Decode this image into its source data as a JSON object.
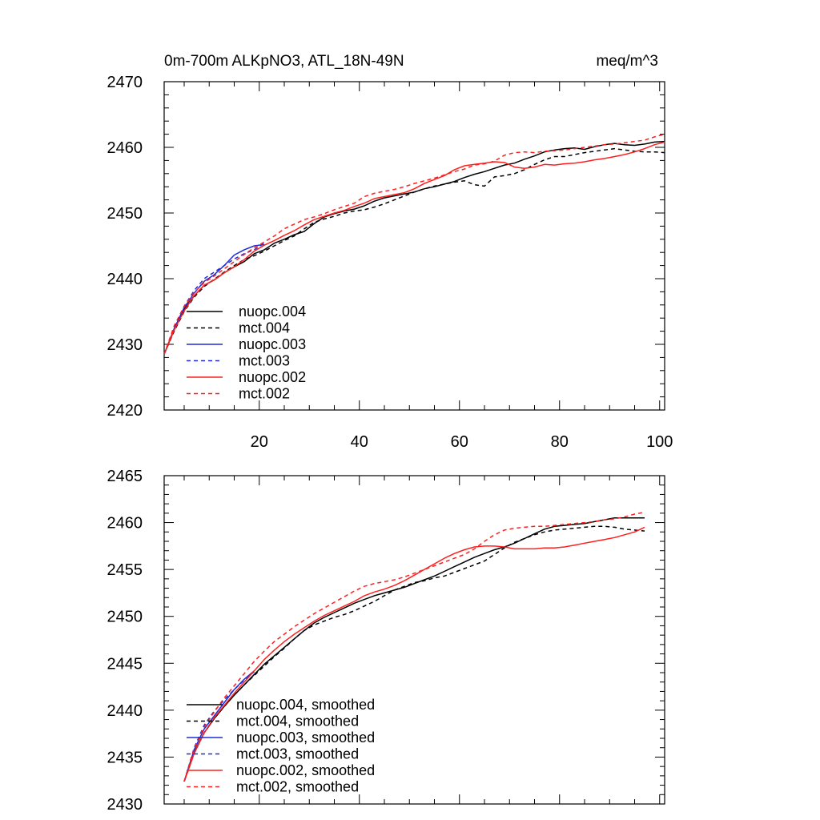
{
  "chart_data": [
    {
      "type": "line",
      "title_left": "0m-700m ALKpNO3, ATL_18N-49N",
      "title_right": "meq/m^3",
      "xlim": [
        1,
        101
      ],
      "ylim": [
        2420,
        2470
      ],
      "x_ticks": [
        20,
        40,
        60,
        80,
        100
      ],
      "y_ticks": [
        2420,
        2430,
        2440,
        2450,
        2460,
        2470
      ],
      "x_tick_labels": [
        "20",
        "40",
        "60",
        "80",
        "100"
      ],
      "y_tick_labels": [
        "2420",
        "2430",
        "2440",
        "2450",
        "2460",
        "2470"
      ],
      "grid": false,
      "legend_position": "bottom-left",
      "series": [
        {
          "name": "nuopc.004",
          "color": "#000000",
          "dash": "solid",
          "x": [
            1,
            3,
            5,
            7,
            9,
            11,
            13,
            15,
            17,
            19,
            21,
            23,
            25,
            27,
            29,
            31,
            33,
            35,
            37,
            39,
            41,
            43,
            45,
            47,
            49,
            51,
            53,
            55,
            57,
            59,
            61,
            63,
            65,
            67,
            69,
            71,
            73,
            75,
            77,
            79,
            81,
            83,
            85,
            87,
            89,
            91,
            93,
            95,
            97,
            99,
            101
          ],
          "y": [
            2428.5,
            2432.2,
            2435.3,
            2437.4,
            2439.0,
            2439.8,
            2440.9,
            2441.8,
            2442.6,
            2443.8,
            2444.4,
            2445.4,
            2446.0,
            2446.7,
            2447.2,
            2448.4,
            2449.4,
            2449.9,
            2450.3,
            2450.6,
            2451.1,
            2451.8,
            2452.3,
            2452.6,
            2452.9,
            2453.2,
            2453.7,
            2454.0,
            2454.4,
            2454.8,
            2455.4,
            2455.9,
            2456.3,
            2456.8,
            2457.3,
            2457.6,
            2458.2,
            2458.7,
            2459.3,
            2459.6,
            2459.8,
            2459.9,
            2459.7,
            2460.1,
            2460.4,
            2460.6,
            2460.4,
            2460.3,
            2460.5,
            2460.8,
            2460.9
          ]
        },
        {
          "name": "mct.004",
          "color": "#000000",
          "dash": "dashed",
          "x": [
            1,
            3,
            5,
            7,
            9,
            11,
            13,
            15,
            17,
            19,
            21,
            23,
            25,
            27,
            29,
            31,
            33,
            35,
            37,
            39,
            41,
            43,
            45,
            47,
            49,
            51,
            53,
            55,
            57,
            59,
            61,
            63,
            65,
            67,
            69,
            71,
            73,
            75,
            77,
            79,
            81,
            83,
            85,
            87,
            89,
            91,
            93,
            95,
            97,
            99,
            101
          ],
          "y": [
            2428.5,
            2432.0,
            2435.0,
            2437.2,
            2438.8,
            2439.9,
            2441.0,
            2442.0,
            2442.9,
            2443.5,
            2444.2,
            2445.0,
            2445.8,
            2446.5,
            2447.6,
            2448.6,
            2449.1,
            2449.5,
            2450.0,
            2450.3,
            2450.5,
            2450.9,
            2451.4,
            2452.0,
            2452.6,
            2453.2,
            2453.7,
            2454.1,
            2454.4,
            2454.7,
            2454.9,
            2454.3,
            2454.1,
            2455.5,
            2455.7,
            2456.0,
            2456.6,
            2457.4,
            2458.1,
            2458.6,
            2458.6,
            2458.9,
            2459.2,
            2459.4,
            2459.6,
            2459.8,
            2459.6,
            2459.4,
            2459.3,
            2459.3,
            2459.2
          ]
        },
        {
          "name": "nuopc.003",
          "color": "#1f2bd6",
          "dash": "solid",
          "x": [
            1,
            3,
            5,
            7,
            9,
            11,
            13,
            15,
            17,
            19,
            21
          ],
          "y": [
            2428.5,
            2432.4,
            2435.6,
            2437.8,
            2439.6,
            2440.6,
            2442.0,
            2443.6,
            2444.4,
            2445.0,
            2445.2
          ]
        },
        {
          "name": "mct.003",
          "color": "#1f2bd6",
          "dash": "dashed",
          "x": [
            1,
            3,
            5,
            7,
            9,
            11,
            13,
            15,
            17,
            19,
            21
          ],
          "y": [
            2428.5,
            2432.6,
            2435.8,
            2438.2,
            2440.0,
            2441.0,
            2442.0,
            2443.0,
            2443.8,
            2444.4,
            2445.4
          ]
        },
        {
          "name": "nuopc.002",
          "color": "#ff1f1f",
          "dash": "solid",
          "x": [
            1,
            3,
            5,
            7,
            9,
            11,
            13,
            15,
            17,
            19,
            21,
            23,
            25,
            27,
            29,
            31,
            33,
            35,
            37,
            39,
            41,
            43,
            45,
            47,
            49,
            51,
            53,
            55,
            57,
            59,
            61,
            63,
            65,
            67,
            69,
            71,
            73,
            75,
            77,
            79,
            81,
            83,
            85,
            87,
            89,
            91,
            93,
            95,
            97,
            99,
            101
          ],
          "y": [
            2428.5,
            2432.2,
            2435.1,
            2437.4,
            2439.0,
            2439.8,
            2440.9,
            2441.8,
            2442.9,
            2444.2,
            2445.1,
            2445.8,
            2446.6,
            2447.3,
            2448.2,
            2449.0,
            2449.5,
            2450.0,
            2450.4,
            2451.0,
            2451.5,
            2452.2,
            2452.5,
            2452.8,
            2453.1,
            2453.7,
            2454.5,
            2455.1,
            2455.7,
            2456.6,
            2457.2,
            2457.4,
            2457.6,
            2457.8,
            2457.7,
            2457.0,
            2456.8,
            2457.0,
            2457.4,
            2457.3,
            2457.5,
            2457.6,
            2457.8,
            2458.1,
            2458.3,
            2458.6,
            2458.9,
            2459.3,
            2459.8,
            2460.4,
            2460.8
          ]
        },
        {
          "name": "mct.002",
          "color": "#ff1f1f",
          "dash": "dashed",
          "x": [
            1,
            3,
            5,
            7,
            9,
            11,
            13,
            15,
            17,
            19,
            21,
            23,
            25,
            27,
            29,
            31,
            33,
            35,
            37,
            39,
            41,
            43,
            45,
            47,
            49,
            51,
            53,
            55,
            57,
            59,
            61,
            63,
            65,
            67,
            69,
            71,
            73,
            75,
            77,
            79,
            81,
            83,
            85,
            87,
            89,
            91,
            93,
            95,
            97,
            99,
            101
          ],
          "y": [
            2428.5,
            2432.8,
            2435.8,
            2437.9,
            2439.4,
            2440.4,
            2441.5,
            2442.6,
            2443.7,
            2444.7,
            2445.6,
            2446.5,
            2447.6,
            2448.3,
            2449.0,
            2449.4,
            2449.9,
            2450.5,
            2451.0,
            2451.5,
            2452.5,
            2453.0,
            2453.3,
            2453.6,
            2454.0,
            2454.5,
            2454.9,
            2455.3,
            2455.8,
            2456.3,
            2456.7,
            2457.3,
            2457.5,
            2457.9,
            2458.8,
            2459.2,
            2459.3,
            2459.2,
            2459.4,
            2459.5,
            2459.6,
            2459.8,
            2460.0,
            2460.2,
            2460.4,
            2460.5,
            2460.7,
            2460.9,
            2461.1,
            2461.6,
            2462.0
          ]
        }
      ]
    },
    {
      "type": "line",
      "xlim": [
        1,
        101
      ],
      "ylim": [
        2430,
        2465
      ],
      "x_ticks": [
        20,
        40,
        60,
        80,
        100
      ],
      "y_ticks": [
        2430,
        2435,
        2440,
        2445,
        2450,
        2455,
        2460,
        2465
      ],
      "y_tick_labels": [
        "2430",
        "2435",
        "2440",
        "2445",
        "2450",
        "2455",
        "2460",
        "2465"
      ],
      "grid": false,
      "legend_position": "bottom-left",
      "series": [
        {
          "name": "nuopc.004, smoothed",
          "color": "#000000",
          "dash": "solid",
          "x": [
            5,
            7,
            9,
            11,
            13,
            15,
            17,
            19,
            21,
            23,
            25,
            27,
            29,
            31,
            33,
            35,
            37,
            39,
            41,
            43,
            45,
            47,
            49,
            51,
            53,
            55,
            57,
            59,
            61,
            63,
            65,
            67,
            69,
            71,
            73,
            75,
            77,
            79,
            81,
            83,
            85,
            87,
            89,
            91,
            93,
            95,
            97
          ],
          "y": [
            2432.4,
            2435.5,
            2437.6,
            2439.1,
            2440.4,
            2441.6,
            2442.7,
            2443.8,
            2444.9,
            2445.8,
            2446.7,
            2447.6,
            2448.5,
            2449.3,
            2449.9,
            2450.4,
            2450.9,
            2451.4,
            2451.8,
            2452.2,
            2452.5,
            2452.8,
            2453.1,
            2453.5,
            2453.9,
            2454.3,
            2454.8,
            2455.3,
            2455.8,
            2456.3,
            2456.7,
            2457.1,
            2457.4,
            2457.8,
            2458.3,
            2458.8,
            2459.3,
            2459.6,
            2459.7,
            2459.8,
            2459.9,
            2460.1,
            2460.3,
            2460.5,
            2460.5,
            2460.5,
            2460.5
          ]
        },
        {
          "name": "mct.004, smoothed",
          "color": "#000000",
          "dash": "dashed",
          "x": [
            5,
            7,
            9,
            11,
            13,
            15,
            17,
            19,
            21,
            23,
            25,
            27,
            29,
            31,
            33,
            35,
            37,
            39,
            41,
            43,
            45,
            47,
            49,
            51,
            53,
            55,
            57,
            59,
            61,
            63,
            65,
            67,
            69,
            71,
            73,
            75,
            77,
            79,
            81,
            83,
            85,
            87,
            89,
            91,
            93,
            95,
            97
          ],
          "y": [
            2432.4,
            2435.4,
            2437.6,
            2439.1,
            2440.4,
            2441.6,
            2442.7,
            2443.7,
            2444.7,
            2445.7,
            2446.6,
            2447.6,
            2448.5,
            2449.1,
            2449.5,
            2449.9,
            2450.2,
            2450.6,
            2451.1,
            2451.6,
            2452.2,
            2452.8,
            2453.2,
            2453.6,
            2453.8,
            2454.1,
            2454.3,
            2454.7,
            2455.1,
            2455.5,
            2455.9,
            2456.6,
            2457.3,
            2457.9,
            2458.3,
            2458.7,
            2459.0,
            2459.2,
            2459.3,
            2459.4,
            2459.5,
            2459.6,
            2459.6,
            2459.5,
            2459.3,
            2459.2,
            2459.1
          ]
        },
        {
          "name": "nuopc.003, smoothed",
          "color": "#1f2bd6",
          "dash": "solid",
          "x": [
            5,
            7,
            9,
            11,
            13,
            15,
            17,
            19
          ],
          "y": [
            2432.4,
            2435.8,
            2438.0,
            2439.4,
            2440.8,
            2442.2,
            2443.3,
            2444.2
          ]
        },
        {
          "name": "mct.003, smoothed",
          "color": "#1f2bd6",
          "dash": "dashed",
          "x": [
            5,
            7,
            9,
            11,
            13,
            15,
            17,
            19
          ],
          "y": [
            2432.4,
            2436.0,
            2438.4,
            2439.9,
            2441.1,
            2442.2,
            2443.2,
            2444.1
          ]
        },
        {
          "name": "nuopc.002, smoothed",
          "color": "#ff1f1f",
          "dash": "solid",
          "x": [
            5,
            7,
            9,
            11,
            13,
            15,
            17,
            19,
            21,
            23,
            25,
            27,
            29,
            31,
            33,
            35,
            37,
            39,
            41,
            43,
            45,
            47,
            49,
            51,
            53,
            55,
            57,
            59,
            61,
            63,
            65,
            67,
            69,
            71,
            73,
            75,
            77,
            79,
            81,
            83,
            85,
            87,
            89,
            91,
            93,
            95,
            97
          ],
          "y": [
            2432.4,
            2435.4,
            2437.6,
            2439.2,
            2440.5,
            2441.8,
            2443.0,
            2444.2,
            2445.4,
            2446.4,
            2447.3,
            2448.1,
            2448.8,
            2449.5,
            2450.1,
            2450.6,
            2451.1,
            2451.6,
            2452.2,
            2452.6,
            2452.9,
            2453.3,
            2453.8,
            2454.4,
            2455.0,
            2455.6,
            2456.2,
            2456.7,
            2457.1,
            2457.4,
            2457.5,
            2457.5,
            2457.4,
            2457.2,
            2457.2,
            2457.2,
            2457.3,
            2457.3,
            2457.4,
            2457.6,
            2457.8,
            2458.0,
            2458.2,
            2458.4,
            2458.7,
            2459.0,
            2459.5
          ]
        },
        {
          "name": "mct.002, smoothed",
          "color": "#ff1f1f",
          "dash": "dashed",
          "x": [
            5,
            7,
            9,
            11,
            13,
            15,
            17,
            19,
            21,
            23,
            25,
            27,
            29,
            31,
            33,
            35,
            37,
            39,
            41,
            43,
            45,
            47,
            49,
            51,
            53,
            55,
            57,
            59,
            61,
            63,
            65,
            67,
            69,
            71,
            73,
            75,
            77,
            79,
            81,
            83,
            85,
            87,
            89,
            91,
            93,
            95,
            97
          ],
          "y": [
            2432.4,
            2435.9,
            2438.2,
            2439.8,
            2441.3,
            2442.6,
            2443.9,
            2445.2,
            2446.3,
            2447.3,
            2448.1,
            2448.9,
            2449.6,
            2450.3,
            2450.9,
            2451.5,
            2452.1,
            2452.7,
            2453.2,
            2453.5,
            2453.7,
            2453.9,
            2454.2,
            2454.6,
            2455.0,
            2455.4,
            2455.8,
            2456.2,
            2456.6,
            2457.2,
            2458.0,
            2458.7,
            2459.2,
            2459.4,
            2459.5,
            2459.6,
            2459.6,
            2459.7,
            2459.8,
            2459.9,
            2460.0,
            2460.1,
            2460.3,
            2460.4,
            2460.6,
            2460.9,
            2461.1
          ]
        }
      ]
    }
  ]
}
